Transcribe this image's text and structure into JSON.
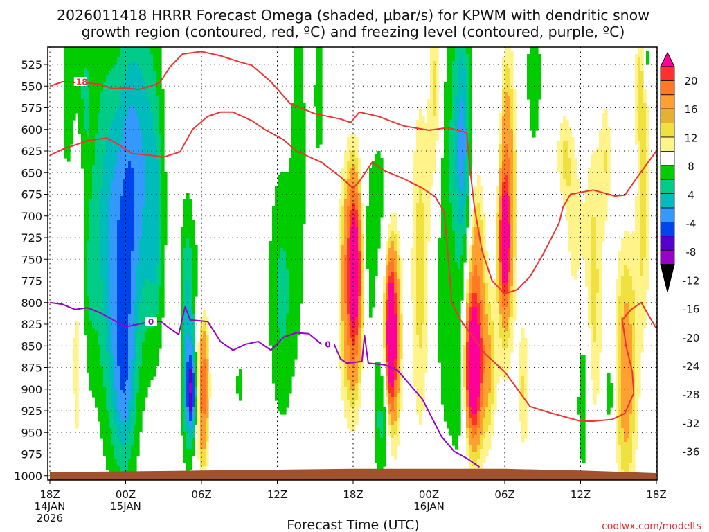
{
  "chart_data": {
    "type": "heatmap",
    "title_line1": "2026011418 HRRR Forecast Omega (shaded, μbar/s) for KPWM with dendritic snow",
    "title_line2": "growth region (contoured, red, ºC) and freezing level (contoured, purple, ºC)",
    "xlabel": "Forecast Time (UTC)",
    "watermark": "coolwx.com/modelts",
    "x_ticks": [
      {
        "h": 0,
        "l1": "18Z",
        "l2": "14JAN",
        "l3": "2026"
      },
      {
        "h": 6,
        "l1": "00Z",
        "l2": "15JAN",
        "l3": ""
      },
      {
        "h": 12,
        "l1": "06Z",
        "l2": "",
        "l3": ""
      },
      {
        "h": 18,
        "l1": "12Z",
        "l2": "",
        "l3": ""
      },
      {
        "h": 24,
        "l1": "18Z",
        "l2": "",
        "l3": ""
      },
      {
        "h": 30,
        "l1": "00Z",
        "l2": "16JAN",
        "l3": ""
      },
      {
        "h": 36,
        "l1": "06Z",
        "l2": "",
        "l3": ""
      },
      {
        "h": 42,
        "l1": "12Z",
        "l2": "",
        "l3": ""
      },
      {
        "h": 48,
        "l1": "18Z",
        "l2": "",
        "l3": ""
      }
    ],
    "x_range_hours": [
      0,
      48
    ],
    "y_ticks": [
      "525",
      "550",
      "575",
      "600",
      "625",
      "650",
      "675",
      "700",
      "725",
      "750",
      "775",
      "800",
      "825",
      "850",
      "875",
      "900",
      "925",
      "950",
      "975",
      "1000"
    ],
    "y_range_hpa": [
      505,
      1005
    ],
    "colorbar_labels": [
      "20",
      "16",
      "12",
      "8",
      "4",
      "-4",
      "-8",
      "-12",
      "-16",
      "-20",
      "-24",
      "-28",
      "-32",
      "-36"
    ],
    "colorbar_colors": [
      "#ff0099",
      "#ff3030",
      "#ff7a20",
      "#ffa030",
      "#e6b030",
      "#f0e040",
      "#fff38a",
      "#ffffff",
      "#00cc00",
      "#00cc88",
      "#00bbbb",
      "#3399ff",
      "#0044ee",
      "#5500cc",
      "#9900cc",
      "#a8a8a8"
    ],
    "contour_labels": {
      "dgz": "-18",
      "freezing": "0"
    },
    "colors": {
      "red_contour": "#ee3333",
      "freezing_contour": "#9900cc",
      "terrain": "#a0522d"
    },
    "omega_features": [
      {
        "t": 1.4,
        "p": 600,
        "w": 0.35,
        "h": 55,
        "v": -5
      },
      {
        "t": 1.7,
        "p": 520,
        "w": 0.5,
        "h": 45,
        "v": -6
      },
      {
        "t": 2.2,
        "p": 860,
        "w": 0.4,
        "h": 110,
        "v": 6
      },
      {
        "t": 2.8,
        "p": 560,
        "w": 0.4,
        "h": 55,
        "v": -7
      },
      {
        "t": 3.0,
        "p": 780,
        "w": 0.5,
        "h": 90,
        "v": -6
      },
      {
        "t": 4.3,
        "p": 660,
        "w": 0.9,
        "h": 160,
        "v": -8
      },
      {
        "t": 5.5,
        "p": 780,
        "w": 1.0,
        "h": 140,
        "v": -14
      },
      {
        "t": 5.9,
        "p": 900,
        "w": 0.6,
        "h": 70,
        "v": -9
      },
      {
        "t": 6.3,
        "p": 640,
        "w": 0.7,
        "h": 140,
        "v": -9
      },
      {
        "t": 7.6,
        "p": 640,
        "w": 0.9,
        "h": 150,
        "v": -12
      },
      {
        "t": 8.4,
        "p": 720,
        "w": 0.45,
        "h": 90,
        "v": -7
      },
      {
        "t": 10.9,
        "p": 830,
        "w": 0.4,
        "h": 100,
        "v": -14
      },
      {
        "t": 11.2,
        "p": 905,
        "w": 0.3,
        "h": 35,
        "v": -20
      },
      {
        "t": 12.1,
        "p": 890,
        "w": 0.35,
        "h": 75,
        "v": 15
      },
      {
        "t": 12.0,
        "p": 770,
        "w": 0.35,
        "h": 60,
        "v": -6
      },
      {
        "t": 15.0,
        "p": 895,
        "w": 0.2,
        "h": 20,
        "v": -6
      },
      {
        "t": 18.4,
        "p": 790,
        "w": 0.8,
        "h": 110,
        "v": -9
      },
      {
        "t": 19.7,
        "p": 620,
        "w": 0.4,
        "h": 130,
        "v": -7
      },
      {
        "t": 21.3,
        "p": 560,
        "w": 0.35,
        "h": 70,
        "v": -6
      },
      {
        "t": 23.9,
        "p": 780,
        "w": 0.75,
        "h": 110,
        "v": 13
      },
      {
        "t": 24.1,
        "p": 760,
        "w": 0.35,
        "h": 60,
        "v": 17
      },
      {
        "t": 25.2,
        "p": 750,
        "w": 0.4,
        "h": 100,
        "v": -7
      },
      {
        "t": 26.2,
        "p": 700,
        "w": 0.5,
        "h": 90,
        "v": -6
      },
      {
        "t": 26.3,
        "p": 930,
        "w": 0.45,
        "h": 60,
        "v": -12
      },
      {
        "t": 27.0,
        "p": 840,
        "w": 0.55,
        "h": 95,
        "v": 16
      },
      {
        "t": 27.0,
        "p": 840,
        "w": 0.25,
        "h": 45,
        "v": 24
      },
      {
        "t": 29.3,
        "p": 760,
        "w": 0.6,
        "h": 170,
        "v": 7
      },
      {
        "t": 30.6,
        "p": 560,
        "w": 0.4,
        "h": 110,
        "v": 8
      },
      {
        "t": 31.2,
        "p": 720,
        "w": 0.5,
        "h": 170,
        "v": -8
      },
      {
        "t": 32.5,
        "p": 560,
        "w": 0.6,
        "h": 130,
        "v": -9
      },
      {
        "t": 32.7,
        "p": 650,
        "w": 0.45,
        "h": 90,
        "v": -12
      },
      {
        "t": 32.3,
        "p": 880,
        "w": 0.45,
        "h": 80,
        "v": -8
      },
      {
        "t": 33.6,
        "p": 820,
        "w": 0.65,
        "h": 120,
        "v": 14
      },
      {
        "t": 33.5,
        "p": 875,
        "w": 0.4,
        "h": 45,
        "v": 24
      },
      {
        "t": 35.3,
        "p": 600,
        "w": 0.45,
        "h": 120,
        "v": -8
      },
      {
        "t": 36.0,
        "p": 680,
        "w": 0.6,
        "h": 130,
        "v": 15
      },
      {
        "t": 36.0,
        "p": 730,
        "w": 0.25,
        "h": 40,
        "v": 21
      },
      {
        "t": 34.8,
        "p": 880,
        "w": 0.4,
        "h": 70,
        "v": 6
      },
      {
        "t": 37.5,
        "p": 900,
        "w": 0.35,
        "h": 70,
        "v": 6
      },
      {
        "t": 38.3,
        "p": 540,
        "w": 0.45,
        "h": 65,
        "v": -7
      },
      {
        "t": 40.7,
        "p": 630,
        "w": 0.5,
        "h": 45,
        "v": 6
      },
      {
        "t": 41.5,
        "p": 720,
        "w": 0.5,
        "h": 75,
        "v": 5
      },
      {
        "t": 43.0,
        "p": 780,
        "w": 0.6,
        "h": 140,
        "v": 7
      },
      {
        "t": 42.2,
        "p": 910,
        "w": 0.35,
        "h": 70,
        "v": -9
      },
      {
        "t": 44.0,
        "p": 630,
        "w": 0.35,
        "h": 60,
        "v": 5
      },
      {
        "t": 44.3,
        "p": 905,
        "w": 0.2,
        "h": 25,
        "v": -10
      },
      {
        "t": 45.6,
        "p": 880,
        "w": 0.7,
        "h": 120,
        "v": 10
      },
      {
        "t": 46.8,
        "p": 540,
        "w": 0.4,
        "h": 60,
        "v": 6
      },
      {
        "t": 47.0,
        "p": 700,
        "w": 0.45,
        "h": 110,
        "v": 6
      },
      {
        "t": 47.2,
        "p": 520,
        "w": 0.2,
        "h": 25,
        "v": -9
      }
    ],
    "dgz_contours": [
      [
        [
          0,
          550
        ],
        [
          1,
          545
        ],
        [
          2,
          545
        ],
        [
          4,
          548
        ],
        [
          5,
          553
        ],
        [
          6,
          552
        ],
        [
          7,
          554
        ],
        [
          8,
          550
        ],
        [
          8.7,
          546
        ],
        [
          9.5,
          528
        ],
        [
          10.5,
          513
        ],
        [
          12,
          510
        ],
        [
          13.5,
          515
        ],
        [
          15,
          522
        ],
        [
          16,
          526
        ],
        [
          17.5,
          545
        ],
        [
          19,
          570
        ],
        [
          21,
          582
        ],
        [
          23,
          588
        ],
        [
          23.8,
          592
        ],
        [
          24.5,
          580
        ],
        [
          26,
          585
        ],
        [
          28,
          596
        ],
        [
          30,
          601
        ],
        [
          31.5,
          598
        ],
        [
          33,
          604
        ],
        [
          33.2,
          640
        ],
        [
          33.6,
          690
        ],
        [
          34.2,
          740
        ],
        [
          35,
          775
        ],
        [
          36,
          790
        ],
        [
          37,
          785
        ],
        [
          38,
          770
        ],
        [
          39,
          745
        ],
        [
          40.3,
          708
        ],
        [
          40.6,
          690
        ],
        [
          41.2,
          675
        ],
        [
          43,
          670
        ],
        [
          44.7,
          677
        ],
        [
          45.5,
          676
        ],
        [
          46.5,
          655
        ],
        [
          48,
          625
        ]
      ],
      [
        [
          0,
          630
        ],
        [
          1,
          623
        ],
        [
          2,
          618
        ],
        [
          3,
          613
        ],
        [
          4.5,
          610
        ],
        [
          5.5,
          618
        ],
        [
          6.5,
          628
        ],
        [
          8,
          630
        ],
        [
          9,
          632
        ],
        [
          10.3,
          626
        ],
        [
          11.3,
          600
        ],
        [
          12.5,
          585
        ],
        [
          13.5,
          580
        ],
        [
          14.5,
          580
        ],
        [
          16,
          590
        ],
        [
          17,
          600
        ],
        [
          18.5,
          612
        ],
        [
          19.5,
          625
        ],
        [
          21.5,
          638
        ],
        [
          23,
          655
        ],
        [
          24,
          668
        ],
        [
          24.5,
          660
        ],
        [
          25.5,
          638
        ],
        [
          26.5,
          648
        ],
        [
          28,
          657
        ],
        [
          29.5,
          668
        ],
        [
          30.5,
          678
        ],
        [
          31.2,
          695
        ],
        [
          31.6,
          760
        ],
        [
          31.8,
          800
        ],
        [
          32.5,
          820
        ],
        [
          33.5,
          840
        ],
        [
          34.5,
          860
        ],
        [
          36,
          880
        ],
        [
          37,
          900
        ],
        [
          38,
          920
        ],
        [
          39.5,
          927
        ],
        [
          41,
          933
        ],
        [
          42,
          937
        ],
        [
          43,
          937
        ],
        [
          44.5,
          935
        ],
        [
          45.5,
          928
        ],
        [
          46.2,
          905
        ],
        [
          46.1,
          880
        ],
        [
          45.6,
          850
        ],
        [
          45.3,
          820
        ],
        [
          46,
          808
        ],
        [
          46.8,
          800
        ],
        [
          47.4,
          815
        ],
        [
          48,
          830
        ]
      ]
    ],
    "freezing_contour": [
      [
        0,
        800
      ],
      [
        1,
        802
      ],
      [
        2,
        808
      ],
      [
        3,
        806
      ],
      [
        4,
        812
      ],
      [
        5,
        820
      ],
      [
        6,
        828
      ],
      [
        7,
        825
      ],
      [
        8,
        822
      ],
      [
        8.8,
        822
      ],
      [
        9.5,
        830
      ],
      [
        10.2,
        837
      ],
      [
        10.7,
        805
      ],
      [
        11.1,
        820
      ],
      [
        12.5,
        822
      ],
      [
        13.5,
        845
      ],
      [
        14.5,
        855
      ],
      [
        15.5,
        848
      ],
      [
        16.5,
        845
      ],
      [
        17.5,
        855
      ],
      [
        18.5,
        840
      ],
      [
        19.5,
        835
      ],
      [
        20.5,
        836
      ],
      [
        21.5,
        848
      ],
      [
        22.5,
        848
      ],
      [
        23,
        865
      ],
      [
        23.5,
        870
      ],
      [
        24.7,
        868
      ],
      [
        24.9,
        838
      ],
      [
        25.2,
        870
      ],
      [
        26.5,
        872
      ],
      [
        27.5,
        878
      ],
      [
        28.5,
        895
      ],
      [
        29.5,
        912
      ],
      [
        30.3,
        935
      ],
      [
        31,
        955
      ],
      [
        32,
        972
      ],
      [
        33,
        980
      ],
      [
        34,
        990
      ]
    ],
    "terrain": [
      [
        0,
        996
      ],
      [
        6,
        995
      ],
      [
        12,
        994
      ],
      [
        18,
        993
      ],
      [
        24,
        992
      ],
      [
        30,
        992
      ],
      [
        36,
        992
      ],
      [
        42,
        994
      ],
      [
        48,
        997
      ]
    ]
  }
}
